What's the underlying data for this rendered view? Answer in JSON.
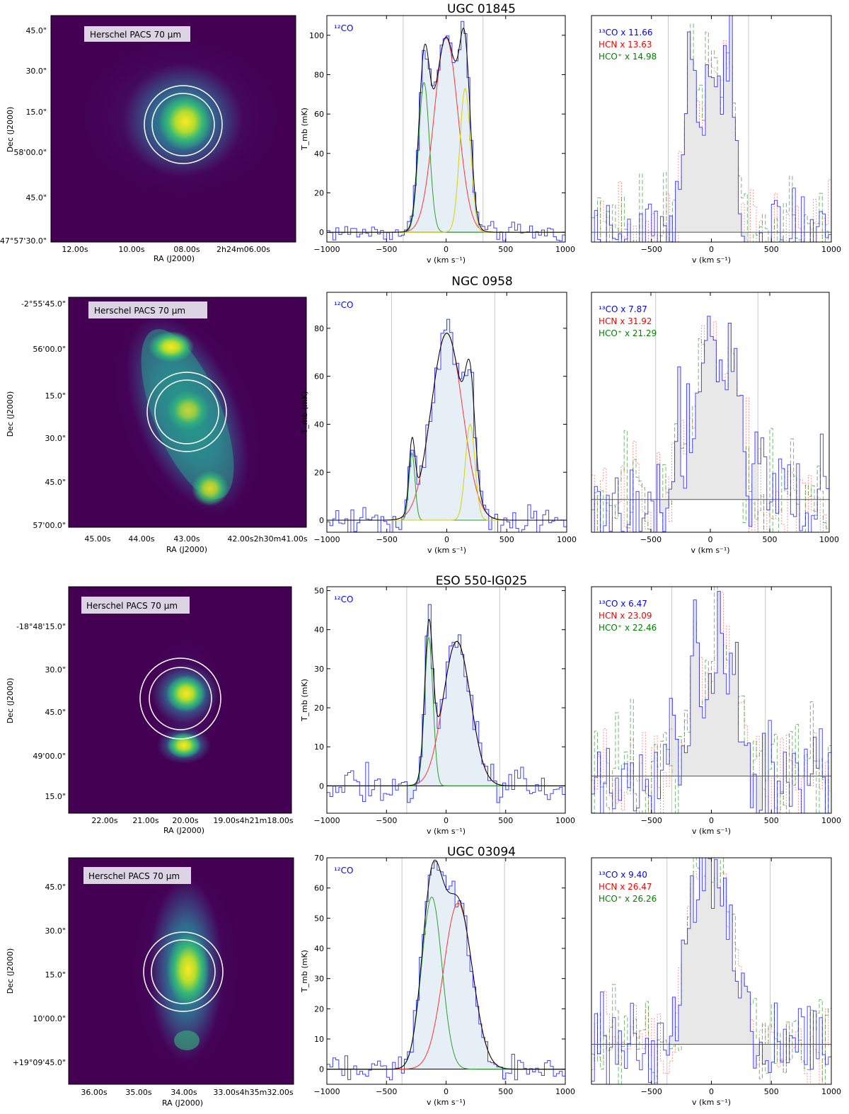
{
  "colors": {
    "co12": "#0000ff",
    "co13": "#0000ff",
    "hcn": "#ff0000",
    "hcop": "#008000",
    "fit_total": "#000000",
    "fit_main": "#ff3333",
    "fit_blue": "#2ca02c",
    "fit_red": "#d4d400",
    "fill": "#e6eef6",
    "map_bg": "#440154"
  },
  "common": {
    "pacs_label": "Herschel PACS 70 μm",
    "ra_label": "RA (J2000)",
    "dec_label": "Dec (J2000)",
    "v_label": "v (km s⁻¹)",
    "tmb_label": "T_mb (mK)",
    "co12_label": "¹²CO",
    "co13_prefix": "¹³CO x",
    "hcn_prefix": "HCN x",
    "hcop_prefix": "HCO⁺ x"
  },
  "chart_data": [
    {
      "type": "line",
      "galaxy": "UGC 01845",
      "image_map": {
        "ra_ticks": [
          "12.00s",
          "10.00s",
          "08.00s",
          "2h24m06.00s"
        ],
        "dec_ticks": [
          "45.0\"",
          "30.0\"",
          "15.0\"",
          "58'00.0\"",
          "45.0\"",
          "+47°57'30.0\""
        ]
      },
      "co12": {
        "xlim": [
          -1000,
          1000
        ],
        "ylim": [
          -5,
          110
        ],
        "xticks": [
          -1000,
          -500,
          0,
          500,
          1000
        ],
        "yticks": [
          0,
          20,
          40,
          60,
          80,
          100
        ],
        "integration_window": [
          -360,
          310
        ],
        "components": [
          {
            "name": "main",
            "amp": 99,
            "center": 0,
            "sigma": 100
          },
          {
            "name": "blue",
            "amp": 76,
            "center": -185,
            "sigma": 45
          },
          {
            "name": "red",
            "amp": 73,
            "center": 160,
            "sigma": 45
          }
        ],
        "noise": 4
      },
      "dense": {
        "xlim": [
          -1000,
          1000
        ],
        "ylim": [
          -5,
          110
        ],
        "xticks": [
          -500,
          0,
          500,
          1000
        ],
        "integration_window": [
          -360,
          310
        ],
        "co13_scale": "11.66",
        "hcn_scale": "13.63",
        "hcop_scale": "14.98",
        "noise": 22
      }
    },
    {
      "type": "line",
      "galaxy": "NGC 0958",
      "image_map": {
        "ra_ticks": [
          "45.00s",
          "44.00s",
          "43.00s",
          "42.00s2h30m41.00s"
        ],
        "dec_ticks": [
          "-2°55'45.0\"",
          "56'00.0\"",
          "15.0\"",
          "30.0\"",
          "45.0\"",
          "57'00.0\""
        ]
      },
      "co12": {
        "xlim": [
          -1000,
          1000
        ],
        "ylim": [
          -5,
          95
        ],
        "xticks": [
          -1000,
          -500,
          0,
          500,
          1000
        ],
        "yticks": [
          0,
          20,
          40,
          60,
          80
        ],
        "integration_window": [
          -460,
          400
        ],
        "components": [
          {
            "name": "main",
            "amp": 78,
            "center": 0,
            "sigma": 130
          },
          {
            "name": "blue",
            "amp": 28,
            "center": -290,
            "sigma": 25
          },
          {
            "name": "red",
            "amp": 40,
            "center": 195,
            "sigma": 40
          }
        ],
        "noise": 6
      },
      "dense": {
        "xlim": [
          -1000,
          1000
        ],
        "ylim": [
          -15,
          95
        ],
        "xticks": [
          -500,
          0,
          500,
          1000
        ],
        "integration_window": [
          -460,
          400
        ],
        "co13_scale": "7.87",
        "hcn_scale": "31.92",
        "hcop_scale": "21.29",
        "noise": 25
      }
    },
    {
      "type": "line",
      "galaxy": "ESO 550-IG025",
      "image_map": {
        "ra_ticks": [
          "22.00s",
          "21.00s",
          "20.00s",
          "19.00s4h21m18.00s"
        ],
        "dec_ticks": [
          "-18°48'15.0\"",
          "30.0\"",
          "45.0\"",
          "49'00.0\"",
          "15.0\""
        ]
      },
      "co12": {
        "xlim": [
          -1000,
          1000
        ],
        "ylim": [
          -7,
          51
        ],
        "xticks": [
          -1000,
          -500,
          0,
          500,
          1000
        ],
        "yticks": [
          0,
          10,
          20,
          30,
          40,
          50
        ],
        "integration_window": [
          -330,
          450
        ],
        "components": [
          {
            "name": "main",
            "amp": 37,
            "center": 90,
            "sigma": 115
          },
          {
            "name": "blue",
            "amp": 38,
            "center": -145,
            "sigma": 35
          }
        ],
        "noise": 4
      },
      "dense": {
        "xlim": [
          -1000,
          1000
        ],
        "ylim": [
          -10,
          51
        ],
        "xticks": [
          -500,
          0,
          500,
          1000
        ],
        "integration_window": [
          -330,
          450
        ],
        "co13_scale": "6.47",
        "hcn_scale": "23.09",
        "hcop_scale": "22.46",
        "noise": 14
      }
    },
    {
      "type": "line",
      "galaxy": "UGC 03094",
      "image_map": {
        "ra_ticks": [
          "36.00s",
          "35.00s",
          "34.00s",
          "33.00s4h35m32.00s"
        ],
        "dec_ticks": [
          "45.0\"",
          "30.0\"",
          "15.0\"",
          "10'00.0\"",
          "+19°09'45.0\""
        ]
      },
      "co12": {
        "xlim": [
          -1000,
          1000
        ],
        "ylim": [
          -5,
          70
        ],
        "xticks": [
          -1000,
          -500,
          0,
          500,
          1000
        ],
        "yticks": [
          0,
          10,
          20,
          30,
          40,
          50,
          60,
          70
        ],
        "integration_window": [
          -370,
          490
        ],
        "components": [
          {
            "name": "main",
            "amp": 55,
            "center": 100,
            "sigma": 120
          },
          {
            "name": "blue",
            "amp": 57,
            "center": -120,
            "sigma": 85
          }
        ],
        "noise": 3.5
      },
      "dense": {
        "xlim": [
          -1000,
          1000
        ],
        "ylim": [
          -15,
          70
        ],
        "xticks": [
          -500,
          0,
          500,
          1000
        ],
        "integration_window": [
          -370,
          490
        ],
        "co13_scale": "9.40",
        "hcn_scale": "26.47",
        "hcop_scale": "26.26",
        "noise": 16
      }
    }
  ]
}
